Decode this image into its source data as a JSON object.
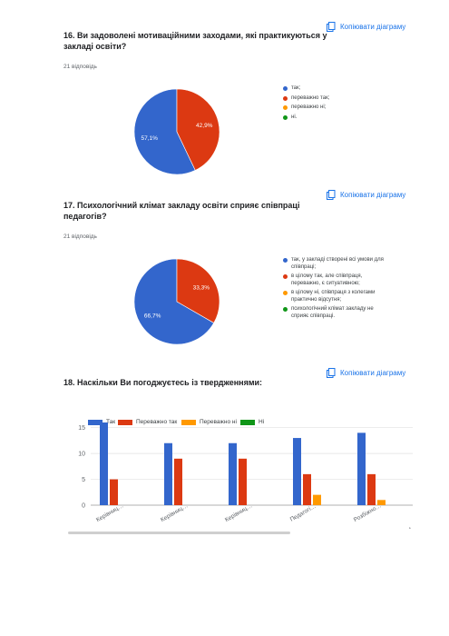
{
  "common": {
    "copy_label": "Копіювати діаграму"
  },
  "colors": {
    "blue": "#3366cc",
    "red": "#dc3912",
    "orange": "#ff9900",
    "green": "#109618",
    "copy_blue": "#1a73e8"
  },
  "questions": [
    {
      "title_line1": "16. Ви задоволені мотиваційними заходами, які практикуються у",
      "title_line2": "закладі освіти?",
      "responses": "21 відповідь",
      "chart_data": {
        "type": "pie",
        "categories": [
          "так;",
          "переважно так;",
          "переважно ні;",
          "ні."
        ],
        "values": [
          57.1,
          42.9,
          0,
          0
        ],
        "labels": [
          "57,1%",
          "42,9%"
        ]
      },
      "legend": [
        {
          "text": "так;",
          "icon": "blue-dot",
          "color": "#3366cc"
        },
        {
          "text": "переважно так;",
          "icon": "red-dot",
          "color": "#dc3912"
        },
        {
          "text": "переважно ні;",
          "icon": "orange-dot",
          "color": "#ff9900"
        },
        {
          "text": "ні.",
          "icon": "green-dot",
          "color": "#109618"
        }
      ]
    },
    {
      "title_line1": "17. Психологічний клімат закладу освіти сприяє співпраці",
      "title_line2": "педагогів?",
      "responses": "21 відповідь",
      "chart_data": {
        "type": "pie",
        "categories": [
          "так, у закладі створені всі умови для співпраці;",
          "в цілому так, але співпраця, переважно, є ситуативною;",
          "в цілому ні, співпраця з колегами практично відсутня;",
          "психологічний клімат закладу не сприяє співпраці."
        ],
        "values": [
          66.7,
          33.3,
          0,
          0
        ],
        "labels": [
          "66,7%",
          "33,3%"
        ]
      },
      "legend": [
        {
          "line1": "так, у закладі створені всі умови для",
          "line2": "співпраці;",
          "icon": "blue-dot",
          "color": "#3366cc"
        },
        {
          "line1": "в цілому так, але співпраця,",
          "line2": "переважно, є ситуативною;",
          "icon": "red-dot",
          "color": "#dc3912"
        },
        {
          "line1": "в цілому ні, співпраця з колегами",
          "line2": "практично відсутня;",
          "icon": "orange-dot",
          "color": "#ff9900"
        },
        {
          "line1": "психологічний клімат закладу не",
          "line2": "сприяє співпраці.",
          "icon": "green-dot",
          "color": "#109618"
        }
      ]
    },
    {
      "title": "18. Наскільки Ви погоджуєтесь із твердженнями:",
      "chart_data": {
        "type": "bar",
        "categories": [
          "Керівниц…",
          "Керівниц…",
          "Керівниц…",
          "Педагогі…",
          "Розбіжно…"
        ],
        "series": [
          {
            "name": "Так",
            "values": [
              16,
              12,
              12,
              13,
              14
            ]
          },
          {
            "name": "Переважно так",
            "values": [
              5,
              9,
              9,
              6,
              6
            ]
          },
          {
            "name": "Переважно ні",
            "values": [
              0,
              0,
              0,
              2,
              1
            ]
          },
          {
            "name": "Ні",
            "values": [
              0,
              0,
              0,
              0,
              0
            ]
          }
        ],
        "yticks": [
          "0",
          "5",
          "10",
          "15"
        ],
        "ylim": [
          0,
          16
        ],
        "grid": true,
        "legend_position": "top"
      }
    }
  ]
}
